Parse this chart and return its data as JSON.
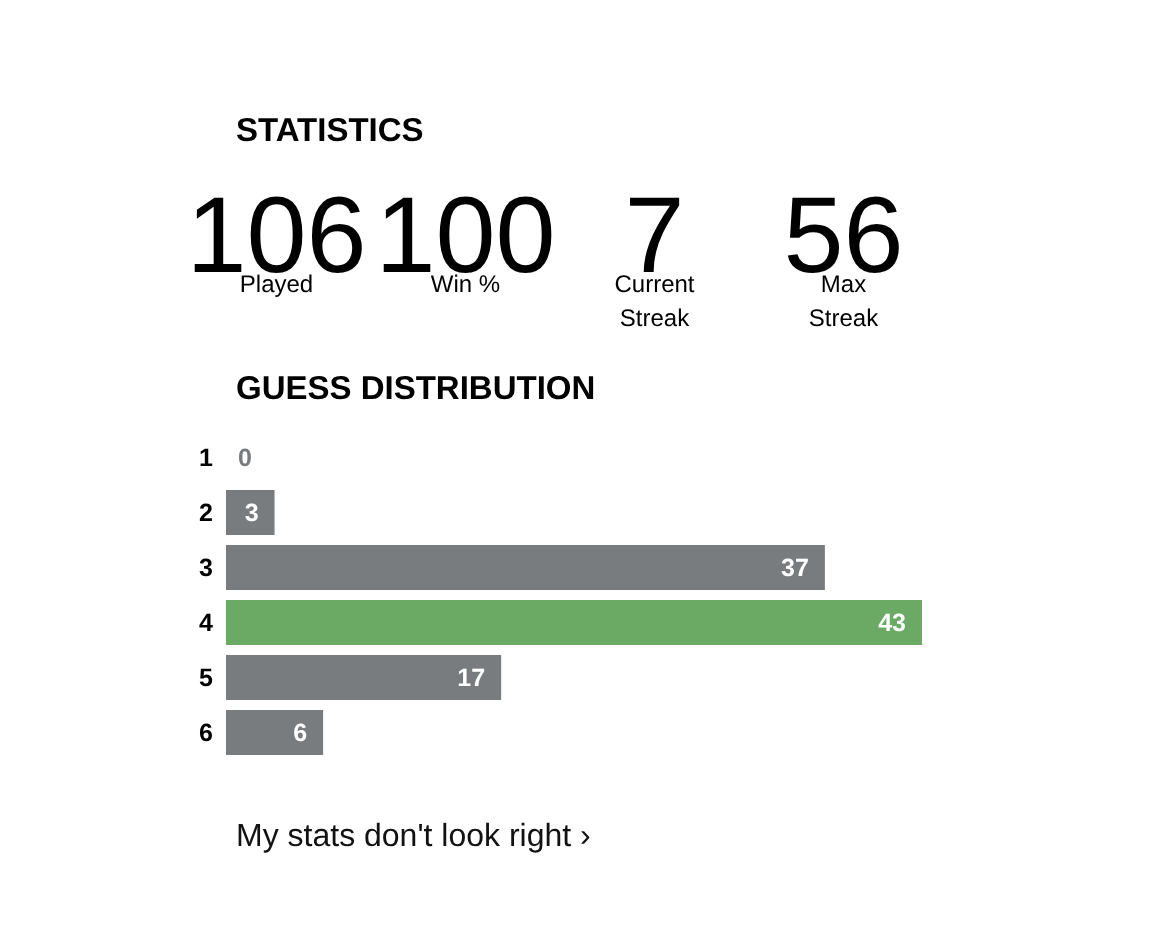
{
  "chart_data": [
    {
      "type": "other",
      "title": "STATISTICS",
      "categories": [
        "Played",
        "Win %",
        "Current\nStreak",
        "Max\nStreak"
      ],
      "values": [
        106,
        100,
        7,
        56
      ],
      "data_labels": true
    },
    {
      "type": "bar",
      "orientation": "horizontal",
      "title": "GUESS DISTRIBUTION",
      "categories": [
        "1",
        "2",
        "3",
        "4",
        "5",
        "6"
      ],
      "values": [
        0,
        3,
        37,
        43,
        17,
        6
      ],
      "colors": [
        "#787c7e",
        "#787c7e",
        "#787c7e",
        "#6aaa64",
        "#787c7e",
        "#787c7e"
      ],
      "data_labels": true,
      "annotations": [
        "My stats don't look right ›"
      ]
    }
  ]
}
